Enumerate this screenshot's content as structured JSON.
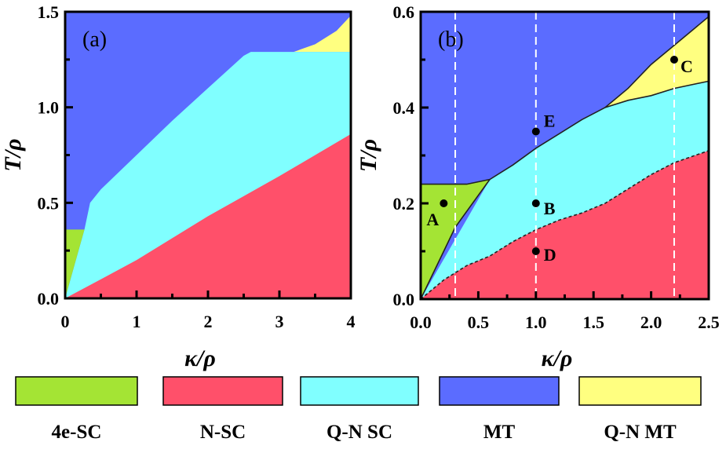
{
  "chart_data": [
    {
      "type": "area",
      "panel_label": "(a)",
      "xlabel": "κ/ρ",
      "ylabel": "T/ρ",
      "xlim": [
        0,
        4
      ],
      "ylim": [
        0,
        1.5
      ],
      "xticks": [
        "0",
        "1",
        "2",
        "3",
        "4"
      ],
      "yticks": [
        "0.0",
        "0.5",
        "1.0",
        "1.5"
      ],
      "regions": [
        {
          "phase": "MT",
          "color": "#5b6cff",
          "polygon": [
            [
              0,
              0
            ],
            [
              0,
              1.5
            ],
            [
              4,
              1.5
            ],
            [
              4,
              0
            ]
          ]
        },
        {
          "phase": "Q-N MT",
          "color": "#ffff80",
          "polygon": [
            [
              3.2,
              1.29
            ],
            [
              3.5,
              1.33
            ],
            [
              3.8,
              1.4
            ],
            [
              4,
              1.48
            ],
            [
              4,
              1.29
            ]
          ]
        },
        {
          "phase": "Q-N SC",
          "color": "#80ffff",
          "polygon": [
            [
              0,
              0
            ],
            [
              0.27,
              0.36
            ],
            [
              0.35,
              0.5
            ],
            [
              0.5,
              0.57
            ],
            [
              1,
              0.75
            ],
            [
              1.5,
              0.93
            ],
            [
              2,
              1.1
            ],
            [
              2.5,
              1.27
            ],
            [
              2.6,
              1.29
            ],
            [
              4,
              1.29
            ],
            [
              4,
              0
            ]
          ]
        },
        {
          "phase": "4e-SC",
          "color": "#a4e434",
          "polygon": [
            [
              0,
              0
            ],
            [
              0,
              0.36
            ],
            [
              0.27,
              0.36
            ]
          ]
        },
        {
          "phase": "N-SC",
          "color": "#ff506a",
          "polygon": [
            [
              0,
              0
            ],
            [
              0.5,
              0.1
            ],
            [
              1,
              0.2
            ],
            [
              2,
              0.43
            ],
            [
              3,
              0.64
            ],
            [
              4,
              0.86
            ],
            [
              4,
              0
            ]
          ]
        }
      ]
    },
    {
      "type": "area",
      "panel_label": "(b)",
      "xlabel": "κ/ρ",
      "ylabel": "T/ρ",
      "xlim": [
        0,
        2.5
      ],
      "ylim": [
        0,
        0.6
      ],
      "xticks": [
        "0.0",
        "0.5",
        "1.0",
        "1.5",
        "2.0",
        "2.5"
      ],
      "yticks": [
        "0.0",
        "0.2",
        "0.4",
        "0.6"
      ],
      "dashed_verticals": [
        0.3,
        1.0,
        2.2
      ],
      "regions": [
        {
          "phase": "MT",
          "color": "#5b6cff",
          "polygon": [
            [
              0,
              0
            ],
            [
              0,
              0.6
            ],
            [
              2.5,
              0.6
            ],
            [
              2.5,
              0
            ]
          ]
        },
        {
          "phase": "Q-N MT",
          "color": "#ffff80",
          "polygon": [
            [
              1.6,
              0.4
            ],
            [
              1.8,
              0.44
            ],
            [
              2,
              0.49
            ],
            [
              2.2,
              0.53
            ],
            [
              2.5,
              0.59
            ],
            [
              2.5,
              0.455
            ],
            [
              2.2,
              0.44
            ],
            [
              2,
              0.425
            ],
            [
              1.8,
              0.415
            ]
          ]
        },
        {
          "phase": "Q-N SC",
          "color": "#80ffff",
          "polygon": [
            [
              0,
              0
            ],
            [
              0.6,
              0.25
            ],
            [
              0.8,
              0.28
            ],
            [
              1,
              0.315
            ],
            [
              1.2,
              0.345
            ],
            [
              1.4,
              0.375
            ],
            [
              1.6,
              0.4
            ],
            [
              1.8,
              0.415
            ],
            [
              2,
              0.425
            ],
            [
              2.2,
              0.44
            ],
            [
              2.5,
              0.455
            ],
            [
              2.5,
              0
            ]
          ]
        },
        {
          "phase": "4e-SC",
          "color": "#a4e434",
          "polygon": [
            [
              0,
              0
            ],
            [
              0,
              0.24
            ],
            [
              0.4,
              0.24
            ],
            [
              0.6,
              0.25
            ],
            [
              0.3,
              0.15
            ],
            [
              0.2,
              0.1
            ]
          ]
        },
        {
          "phase": "N-SC",
          "color": "#ff506a",
          "polygon": [
            [
              0,
              0
            ],
            [
              0.2,
              0.04
            ],
            [
              0.4,
              0.07
            ],
            [
              0.6,
              0.09
            ],
            [
              0.8,
              0.12
            ],
            [
              1,
              0.145
            ],
            [
              1.2,
              0.165
            ],
            [
              1.4,
              0.18
            ],
            [
              1.6,
              0.2
            ],
            [
              1.8,
              0.23
            ],
            [
              2,
              0.26
            ],
            [
              2.2,
              0.285
            ],
            [
              2.5,
              0.31
            ],
            [
              2.5,
              0
            ]
          ]
        }
      ],
      "boundaries": [
        {
          "style": "solid",
          "points": [
            [
              0,
              0
            ],
            [
              0.2,
              0.1
            ],
            [
              0.3,
              0.15
            ],
            [
              0.6,
              0.25
            ]
          ]
        },
        {
          "style": "solid",
          "points": [
            [
              0,
              0.24
            ],
            [
              0.4,
              0.24
            ],
            [
              0.6,
              0.25
            ],
            [
              0.8,
              0.28
            ],
            [
              1,
              0.315
            ],
            [
              1.2,
              0.345
            ],
            [
              1.4,
              0.375
            ],
            [
              1.6,
              0.4
            ],
            [
              1.8,
              0.44
            ],
            [
              2,
              0.49
            ],
            [
              2.2,
              0.53
            ],
            [
              2.5,
              0.59
            ]
          ]
        },
        {
          "style": "solid",
          "points": [
            [
              1.6,
              0.4
            ],
            [
              1.8,
              0.415
            ],
            [
              2,
              0.425
            ],
            [
              2.2,
              0.44
            ],
            [
              2.5,
              0.455
            ]
          ]
        },
        {
          "style": "dashed",
          "points": [
            [
              0,
              0
            ],
            [
              0.2,
              0.04
            ],
            [
              0.4,
              0.07
            ],
            [
              0.6,
              0.09
            ],
            [
              0.8,
              0.12
            ],
            [
              1,
              0.145
            ],
            [
              1.2,
              0.165
            ],
            [
              1.4,
              0.18
            ],
            [
              1.6,
              0.2
            ],
            [
              1.8,
              0.23
            ],
            [
              2,
              0.26
            ],
            [
              2.2,
              0.285
            ],
            [
              2.5,
              0.31
            ]
          ]
        }
      ],
      "points": [
        {
          "label": "A",
          "x": 0.2,
          "y": 0.2
        },
        {
          "label": "B",
          "x": 1.0,
          "y": 0.2
        },
        {
          "label": "C",
          "x": 2.2,
          "y": 0.5
        },
        {
          "label": "D",
          "x": 1.0,
          "y": 0.1
        },
        {
          "label": "E",
          "x": 1.0,
          "y": 0.35
        }
      ]
    }
  ],
  "legend": [
    {
      "label": "4e-SC",
      "color": "#a4e434"
    },
    {
      "label": "N-SC",
      "color": "#ff506a"
    },
    {
      "label": "Q-N SC",
      "color": "#80ffff"
    },
    {
      "label": "MT",
      "color": "#5b6cff"
    },
    {
      "label": "Q-N MT",
      "color": "#ffff80"
    }
  ]
}
